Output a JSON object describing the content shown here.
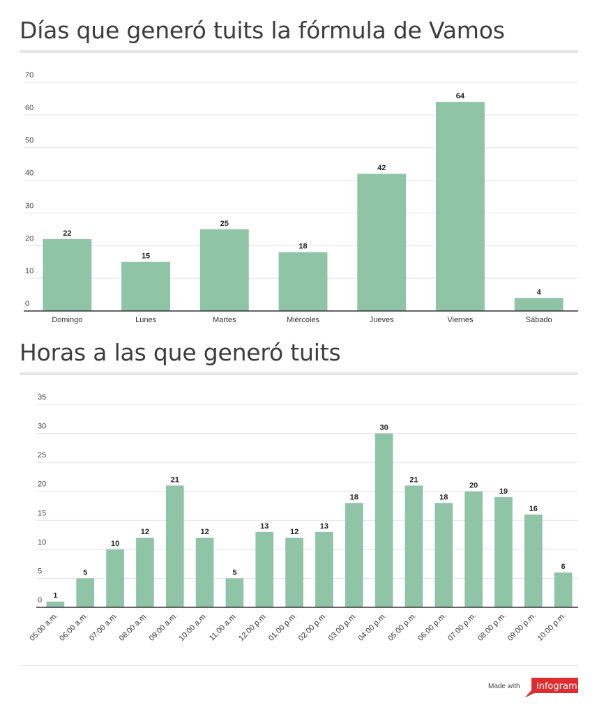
{
  "colors": {
    "bar": "#8fc4a7",
    "grid": "#e3e3e3",
    "axis": "#333333",
    "brand": "#e02c2f"
  },
  "chart_data": [
    {
      "type": "bar",
      "title": "Días que generó tuits la fórmula de Vamos",
      "categories": [
        "Domingo",
        "Lunes",
        "Martes",
        "Miércoles",
        "Jueves",
        "Viernes",
        "Sábado"
      ],
      "values": [
        22,
        15,
        25,
        18,
        42,
        64,
        4
      ],
      "yticks": [
        0,
        10,
        20,
        30,
        40,
        50,
        60,
        70
      ],
      "ylim": [
        0,
        70
      ],
      "grid": true,
      "data_labels": true
    },
    {
      "type": "bar",
      "title": "Horas a las que generó tuits",
      "categories": [
        "05:00 a.m.",
        "06:00 a.m.",
        "07:00 a.m.",
        "08:00 a.m.",
        "09:00 a.m.",
        "10:00 a.m.",
        "11:00 a.m.",
        "12:00 p.m.",
        "01:00 p.m.",
        "02:00 p.m.",
        "03:00 p.m.",
        "04:00 p.m.",
        "05:00 p.m.",
        "06:00 p.m.",
        "07:00 p.m.",
        "08:00 p.m.",
        "09:00 p.m.",
        "10:00 p.m."
      ],
      "values": [
        1,
        5,
        10,
        12,
        21,
        12,
        5,
        13,
        12,
        13,
        18,
        30,
        21,
        18,
        20,
        19,
        16,
        6
      ],
      "yticks": [
        0,
        5,
        10,
        15,
        20,
        25,
        30,
        35
      ],
      "ylim": [
        0,
        35
      ],
      "grid": true,
      "data_labels": true,
      "rotated_tick_labels": true
    }
  ],
  "footer": {
    "made_with": "Made with",
    "brand": "infogram"
  }
}
